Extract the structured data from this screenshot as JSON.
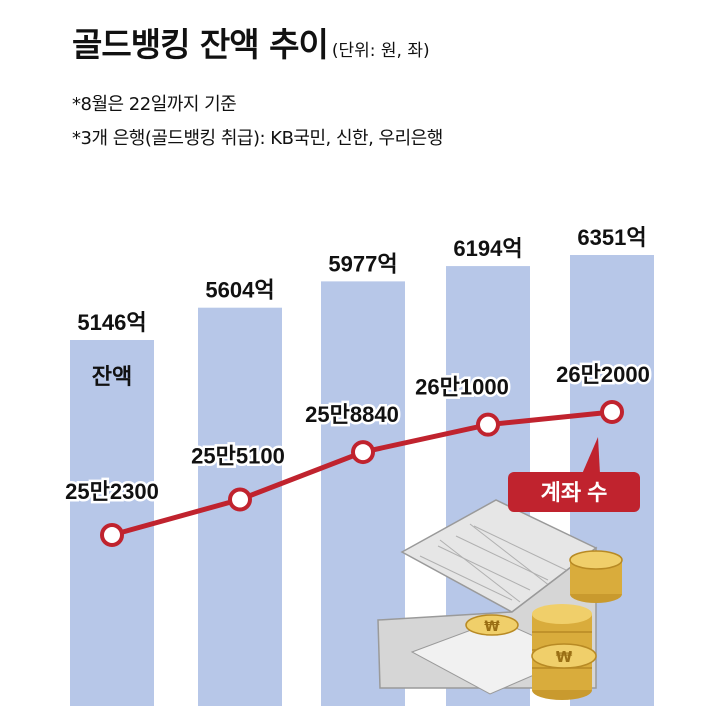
{
  "header": {
    "title": "골드뱅킹 잔액 추이",
    "unit": "(단위: 원, 좌)",
    "note1": "*8월은 22일까지 기준",
    "note2": "*3개 은행(골드뱅킹 취급): KB국민, 신한, 우리은행"
  },
  "chart_data": {
    "type": "bar+line",
    "title": "골드뱅킹 잔액 추이",
    "bar_series": {
      "label": "잔액",
      "values": [
        5146,
        5604,
        5977,
        6194,
        6351
      ],
      "labels": [
        "5146억",
        "5604억",
        "5977억",
        "6194억",
        "6351억"
      ]
    },
    "line_series": {
      "label": "계좌 수",
      "values": [
        252300,
        255100,
        258840,
        261000,
        262000
      ],
      "labels": [
        "25만2300",
        "25만5100",
        "25만8840",
        "26만1000",
        "26만2000"
      ]
    },
    "colors": {
      "bar": "#b7c7e8",
      "line": "#c0232e",
      "marker_fill": "#ffffff",
      "callout": "#c0232e",
      "callout_text": "#ffffff"
    }
  }
}
